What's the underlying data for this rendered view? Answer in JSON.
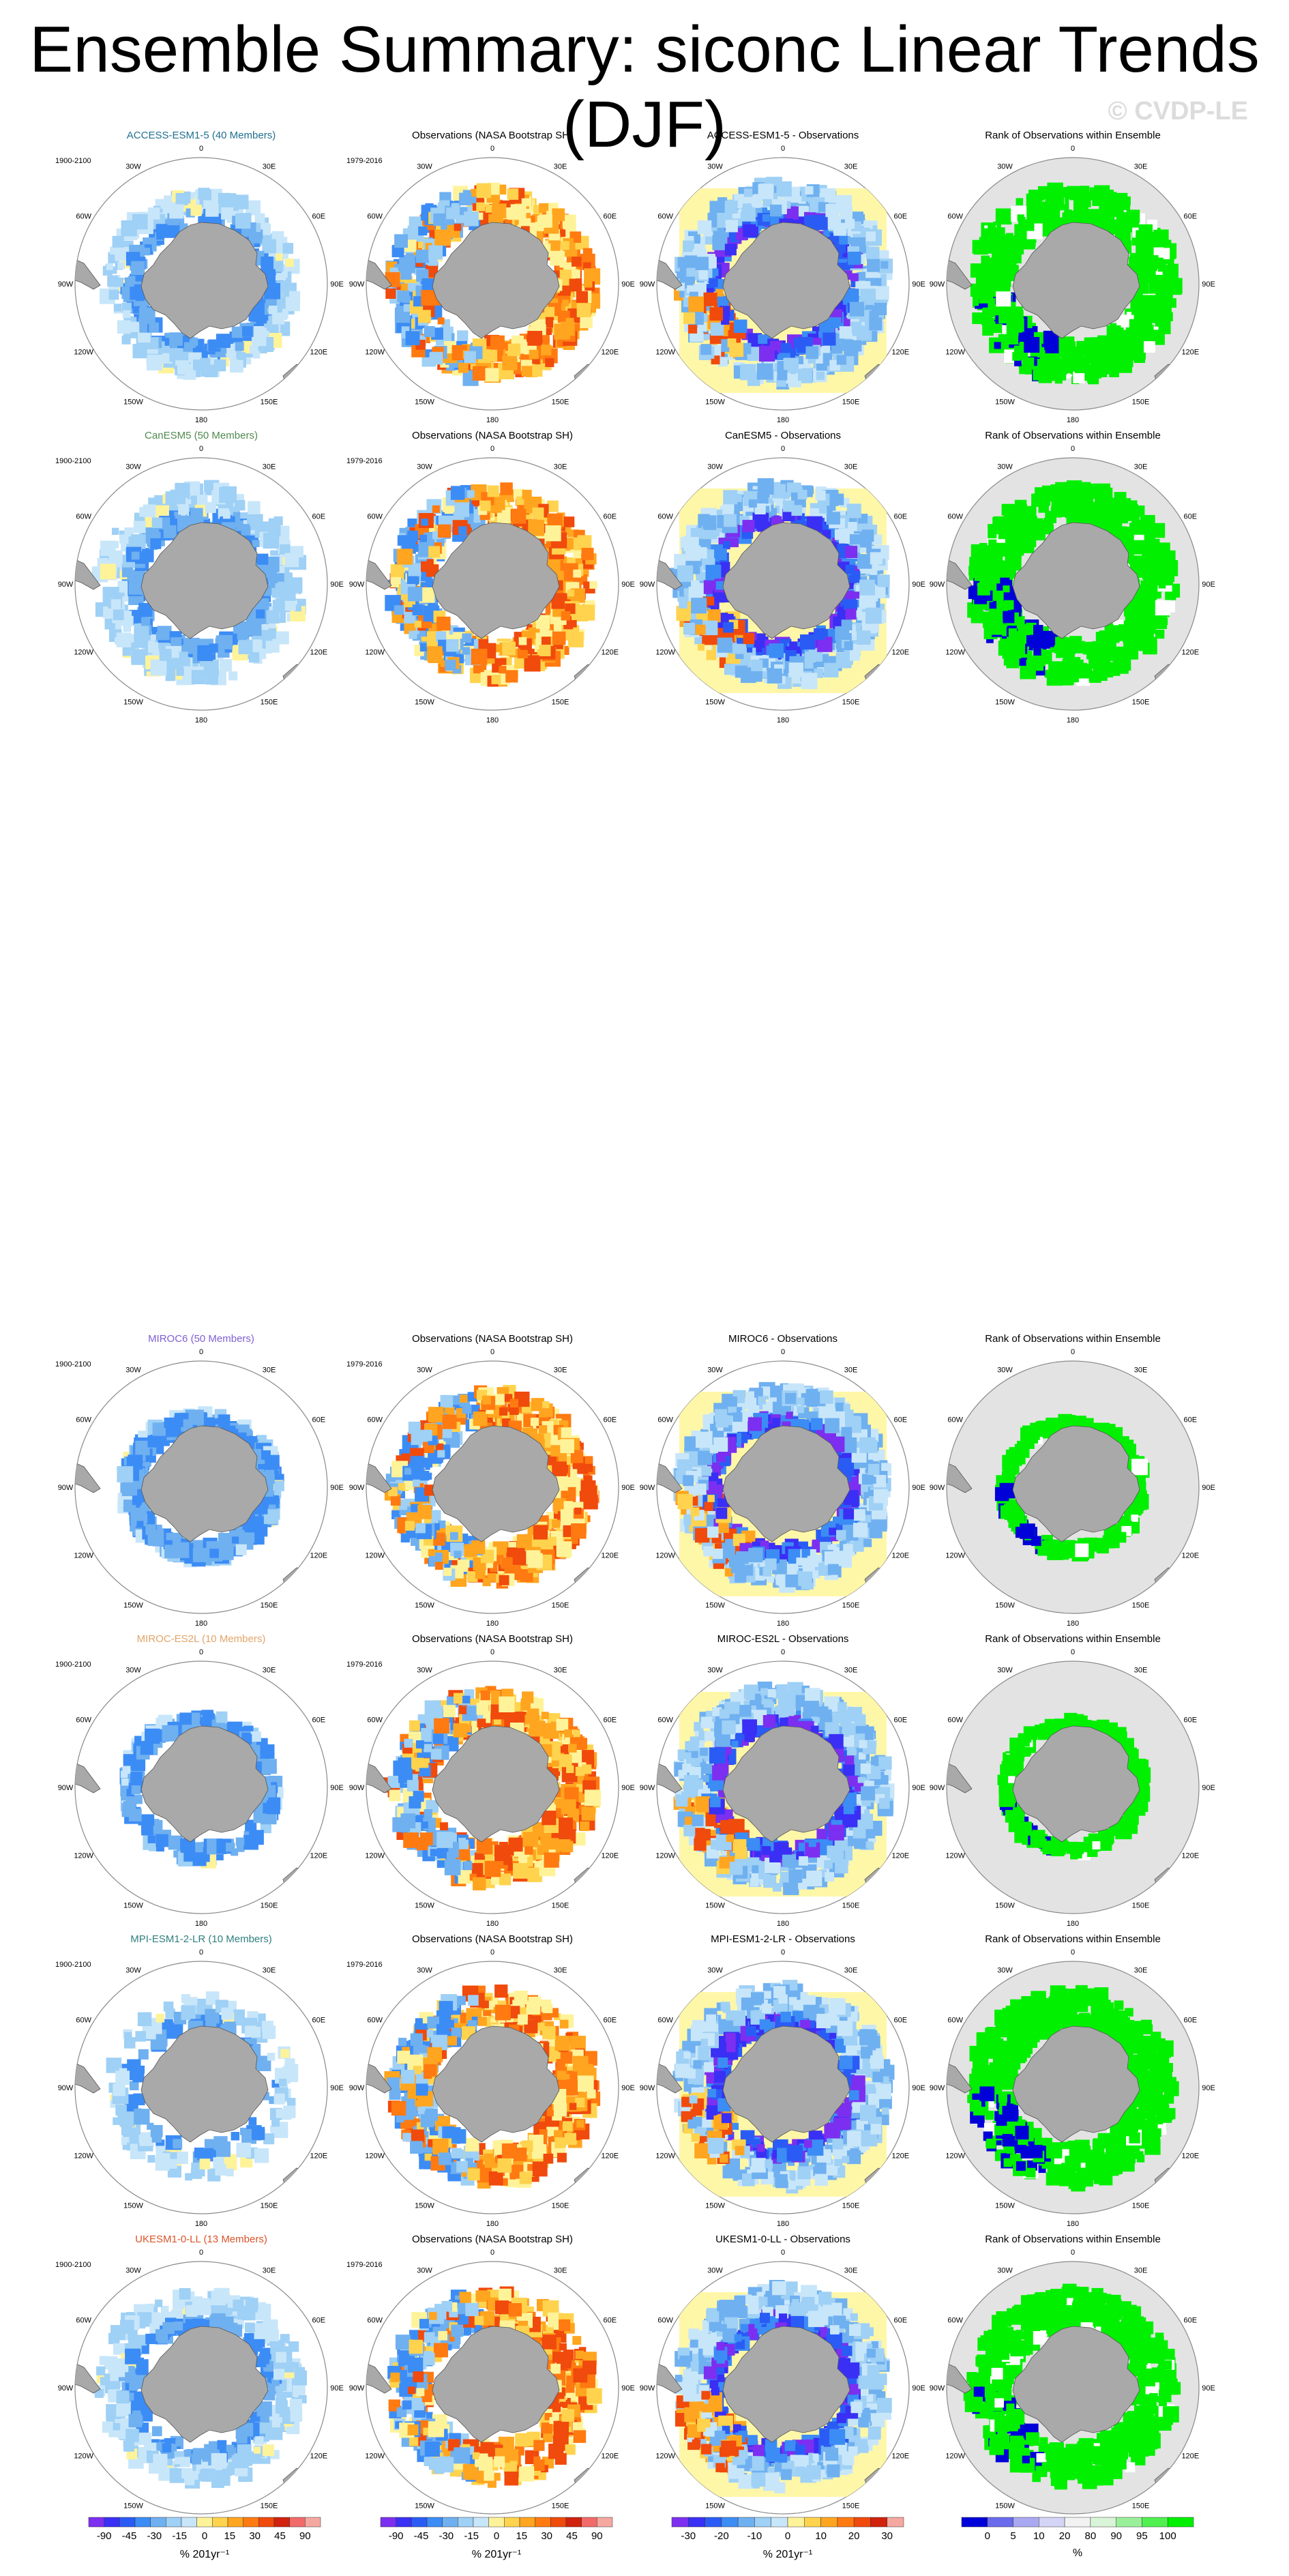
{
  "title": "Ensemble Summary: siconc Linear Trends (DJF)",
  "watermark": "© CVDP-LE",
  "icons": {
    "land": "antarctica-landmass-shape",
    "grid": "polar-stereographic-circle"
  },
  "colors": {
    "land": "#a9a9a9",
    "ocean_bg": "#ffffff",
    "rank_bg": "#e3e3e3",
    "ocean_fill": "#fff7a8",
    "title_colors": [
      "#1f6f8f",
      "#4f8a4f",
      "#7f5fd4",
      "#e3a46a",
      "#2f7f7f",
      "#d9542a"
    ]
  },
  "map_labels": {
    "lon": [
      "0",
      "30E",
      "60E",
      "90E",
      "120E",
      "150E",
      "180",
      "150W",
      "120W",
      "90W",
      "60W",
      "30W"
    ]
  },
  "chart_data": {
    "type": "heatmap",
    "projection": "south-polar-stereographic",
    "variable": "siconc",
    "season": "DJF",
    "columns": [
      "model",
      "observations",
      "difference",
      "rank"
    ],
    "rows": [
      {
        "model": "ACCESS-ESM1-5 (40 Members)",
        "model_period": "1900-2100",
        "obs_title": "Observations (NASA Bootstrap SH)",
        "obs_period": "1979-2016",
        "diff_title": "ACCESS-ESM1-5 - Observations",
        "rank_title": "Rank of Observations within Ensemble"
      },
      {
        "model": "CanESM5 (50 Members)",
        "model_period": "1900-2100",
        "obs_title": "Observations (NASA Bootstrap SH)",
        "obs_period": "1979-2016",
        "diff_title": "CanESM5 - Observations",
        "rank_title": "Rank of Observations within Ensemble"
      },
      {
        "model": "MIROC6 (50 Members)",
        "model_period": "1900-2100",
        "obs_title": "Observations (NASA Bootstrap SH)",
        "obs_period": "1979-2016",
        "diff_title": "MIROC6 - Observations",
        "rank_title": "Rank of Observations within Ensemble"
      },
      {
        "model": "MIROC-ES2L (10 Members)",
        "model_period": "1900-2100",
        "obs_title": "Observations (NASA Bootstrap SH)",
        "obs_period": "1979-2016",
        "diff_title": "MIROC-ES2L - Observations",
        "rank_title": "Rank of Observations within Ensemble"
      },
      {
        "model": "MPI-ESM1-2-LR (10 Members)",
        "model_period": "1900-2100",
        "obs_title": "Observations (NASA Bootstrap SH)",
        "obs_period": "1979-2016",
        "diff_title": "MPI-ESM1-2-LR - Observations",
        "rank_title": "Rank of Observations within Ensemble"
      },
      {
        "model": "UKESM1-0-LL (13 Members)",
        "model_period": "1900-2100",
        "obs_title": "Observations (NASA Bootstrap SH)",
        "obs_period": "1979-2016",
        "diff_title": "UKESM1-0-LL - Observations",
        "rank_title": "Rank of Observations within Ensemble"
      }
    ],
    "colorbars": [
      {
        "ticks": [
          "-90",
          "-45",
          "-30",
          "-15",
          "0",
          "15",
          "30",
          "45",
          "90"
        ],
        "unit": "% 201yr⁻¹",
        "colors": [
          "#7c2ff0",
          "#3a2ff5",
          "#2a5cf5",
          "#3c8cf5",
          "#6fb0f0",
          "#9fd0f5",
          "#c8e6fa",
          "#fff39a",
          "#ffd34d",
          "#ffa51f",
          "#ff7a10",
          "#f04a0c",
          "#d0220c",
          "#f26a6a",
          "#f5a8a0"
        ]
      },
      {
        "ticks": [
          "-90",
          "-45",
          "-30",
          "-15",
          "0",
          "15",
          "30",
          "45",
          "90"
        ],
        "unit": "% 201yr⁻¹",
        "colors": [
          "#7c2ff0",
          "#3a2ff5",
          "#2a5cf5",
          "#3c8cf5",
          "#6fb0f0",
          "#9fd0f5",
          "#c8e6fa",
          "#fff39a",
          "#ffd34d",
          "#ffa51f",
          "#ff7a10",
          "#f04a0c",
          "#d0220c",
          "#f26a6a",
          "#f5a8a0"
        ]
      },
      {
        "ticks": [
          "-30",
          "-20",
          "-10",
          "0",
          "10",
          "20",
          "30"
        ],
        "unit": "% 201yr⁻¹",
        "colors": [
          "#7c2ff0",
          "#3a2ff5",
          "#2a5cf5",
          "#3c8cf5",
          "#6fb0f0",
          "#9fd0f5",
          "#c8e6fa",
          "#fff39a",
          "#ffd34d",
          "#ffa51f",
          "#ff7a10",
          "#f04a0c",
          "#d0220c",
          "#f5a8a0"
        ]
      },
      {
        "ticks": [
          "0",
          "5",
          "10",
          "20",
          "80",
          "90",
          "95",
          "100"
        ],
        "unit": "%",
        "colors": [
          "#0000d8",
          "#6a6aec",
          "#a9a9f2",
          "#d4d4f7",
          "#f2f2f2",
          "#d8f5d8",
          "#9af09a",
          "#4ff04f",
          "#00f000"
        ]
      }
    ]
  }
}
